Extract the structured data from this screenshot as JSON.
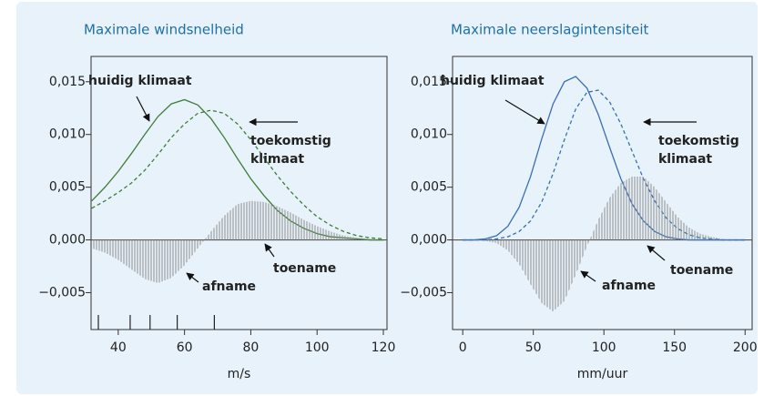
{
  "chart_data": [
    {
      "type": "line",
      "title": "Maximale windsnelheid",
      "xlabel": "m/s",
      "x": [
        32,
        36,
        40,
        44,
        48,
        52,
        56,
        60,
        64,
        68,
        72,
        76,
        80,
        84,
        88,
        92,
        96,
        100,
        104,
        108,
        112,
        116,
        120
      ],
      "series": [
        {
          "color": "#3f7d3a",
          "dash": false,
          "values": [
            0.0037,
            0.005,
            0.0065,
            0.0082,
            0.01,
            0.0117,
            0.0129,
            0.0133,
            0.0128,
            0.0115,
            0.0097,
            0.0077,
            0.0058,
            0.0042,
            0.0028,
            0.0018,
            0.0011,
            0.0006,
            0.0003,
            0.0002,
            0.0001,
            0,
            0
          ]
        },
        {
          "color": "#3f7d3a",
          "dash": true,
          "values": [
            0.003,
            0.0037,
            0.0045,
            0.0054,
            0.0066,
            0.0081,
            0.0097,
            0.011,
            0.012,
            0.0123,
            0.012,
            0.011,
            0.0095,
            0.0078,
            0.0061,
            0.0046,
            0.0033,
            0.0022,
            0.0014,
            0.0008,
            0.0004,
            0.0002,
            0.0001
          ]
        },
        {
          "color": "#9a9a9a",
          "fill": "hatch",
          "values": [
            -0.0008,
            -0.0012,
            -0.0019,
            -0.0028,
            -0.0037,
            -0.0041,
            -0.0036,
            -0.0024,
            -0.0008,
            0.0008,
            0.0023,
            0.0034,
            0.0037,
            0.0036,
            0.0032,
            0.0026,
            0.0019,
            0.0013,
            0.0008,
            0.0004,
            0.0002,
            0.0001,
            0
          ]
        }
      ],
      "rug": [
        34,
        43.6,
        49.6,
        57.8,
        69
      ],
      "annotations": [
        "huidig klimaat",
        "toekomstig",
        "klimaat",
        "toename",
        "afname"
      ],
      "xlim": [
        31.8,
        121.1
      ],
      "xticks": [
        40,
        60,
        80,
        100,
        120
      ],
      "ylim": [
        -0.0085,
        0.0174
      ],
      "yticks": [
        {
          "value": 0.015,
          "label": "0,015"
        },
        {
          "value": 0.01,
          "label": "0,010"
        },
        {
          "value": 0.005,
          "label": "0,005"
        },
        {
          "value": 0,
          "label": "0,000"
        },
        {
          "value": -0.005,
          "label": "−0,005"
        }
      ]
    },
    {
      "type": "line",
      "title": "Maximale neerslagintensiteit",
      "xlabel": "mm/uur",
      "x": [
        0,
        8,
        16,
        24,
        32,
        40,
        48,
        56,
        64,
        72,
        80,
        88,
        96,
        104,
        112,
        120,
        128,
        136,
        144,
        152,
        160,
        168,
        176,
        184,
        192,
        200
      ],
      "series": [
        {
          "color": "#3a6fb4",
          "dash": false,
          "values": [
            0,
            0,
            0.0001,
            0.0004,
            0.0013,
            0.0031,
            0.006,
            0.0096,
            0.0129,
            0.015,
            0.0155,
            0.0144,
            0.0119,
            0.0088,
            0.0058,
            0.0034,
            0.0018,
            0.0008,
            0.0003,
            0.0001,
            0,
            0,
            0,
            0,
            0,
            0
          ]
        },
        {
          "color": "#3a6fb4",
          "dash": true,
          "values": [
            0,
            0,
            0,
            0.0001,
            0.0003,
            0.0008,
            0.0018,
            0.0036,
            0.0063,
            0.0095,
            0.0124,
            0.014,
            0.0142,
            0.0131,
            0.011,
            0.0084,
            0.0058,
            0.0037,
            0.0021,
            0.0011,
            0.0005,
            0.0002,
            0.0001,
            0,
            0,
            0
          ]
        },
        {
          "color": "#9a9a9a",
          "fill": "hatch",
          "values": [
            0,
            0,
            -0.0001,
            -0.0003,
            -0.001,
            -0.0023,
            -0.0042,
            -0.006,
            -0.0068,
            -0.0058,
            -0.0033,
            -0.0006,
            0.0019,
            0.004,
            0.0054,
            0.006,
            0.006,
            0.005,
            0.0036,
            0.0022,
            0.0012,
            0.0006,
            0.0003,
            0.0001,
            0,
            0
          ]
        }
      ],
      "annotations": [
        "huidig klimaat",
        "toekomstig",
        "klimaat",
        "toename",
        "afname"
      ],
      "xlim": [
        -7.2,
        205
      ],
      "xticks": [
        0,
        50,
        100,
        150,
        200
      ],
      "ylim": [
        -0.0085,
        0.0174
      ],
      "yticks": [
        {
          "value": 0.015,
          "label": "0,015"
        },
        {
          "value": 0.01,
          "label": "0,010"
        },
        {
          "value": 0.005,
          "label": "0,005"
        },
        {
          "value": 0,
          "label": "0,000"
        },
        {
          "value": -0.005,
          "label": "−0,005"
        }
      ]
    }
  ]
}
